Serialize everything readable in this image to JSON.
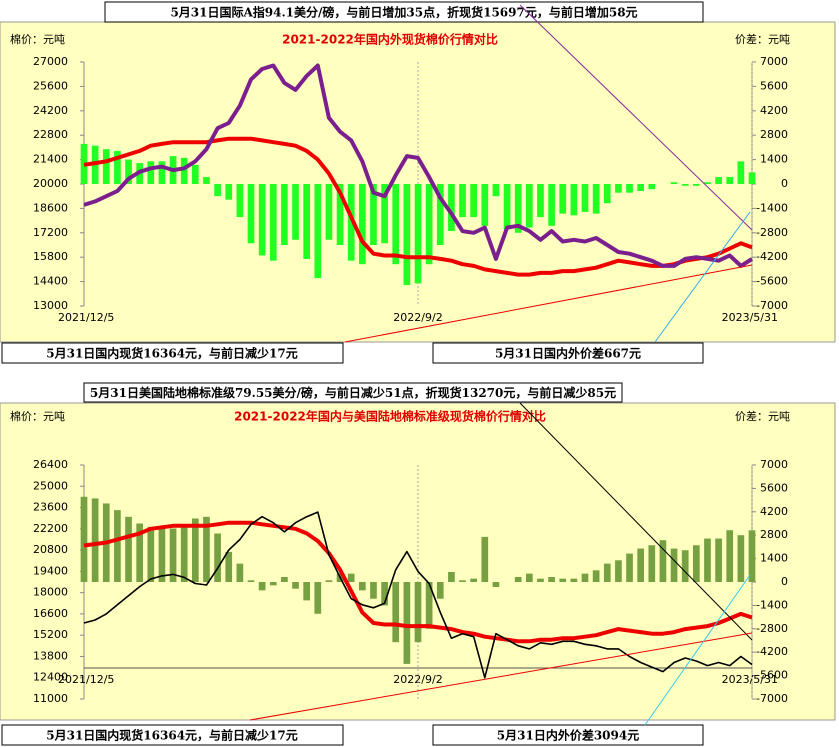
{
  "chart_data": [
    {
      "type": "combo",
      "headline": "5月31日国际A指94.1美分/磅，与前日增加35点，折现货15697元，与前日增加58元",
      "title": "2021-2022年国内外现货棉价行情对比",
      "left_label": "棉价：元吨",
      "right_label": "价差：元吨",
      "footer_left": "5月31日国内现货16364元，与前日减少17元",
      "footer_right": "5月31日国内外价差667元",
      "categories": [
        "2021/12/5",
        null,
        null,
        null,
        null,
        null,
        null,
        null,
        null,
        null,
        null,
        null,
        null,
        null,
        null,
        null,
        null,
        null,
        null,
        null,
        null,
        null,
        null,
        null,
        null,
        null,
        null,
        null,
        null,
        null,
        "2022/9/2",
        null,
        null,
        null,
        null,
        null,
        null,
        null,
        null,
        null,
        null,
        null,
        null,
        null,
        null,
        null,
        null,
        null,
        null,
        null,
        null,
        null,
        null,
        null,
        null,
        null,
        null,
        null,
        null,
        null,
        "2023/5/31"
      ],
      "ylim": [
        13000,
        27000
      ],
      "yticks": [
        13000,
        14400,
        15800,
        17200,
        18600,
        20000,
        21400,
        22800,
        24200,
        25600,
        27000
      ],
      "y2lim": [
        -7000,
        7000
      ],
      "y2ticks": [
        -7000,
        -5600,
        -4200,
        -2800,
        -1400,
        0,
        1400,
        2800,
        4200,
        5600,
        7000
      ],
      "series": [
        {
          "type": "bar",
          "axis": "y2",
          "color": "#22ff22",
          "values": [
            2300,
            2200,
            2000,
            1900,
            1400,
            1200,
            1300,
            1300,
            1600,
            1500,
            1100,
            400,
            -700,
            -900,
            -1900,
            -3400,
            -4100,
            -4400,
            -3500,
            -3200,
            -4300,
            -5400,
            -3200,
            -3500,
            -4400,
            -4600,
            -3500,
            -3400,
            -4600,
            -5800,
            -5700,
            -4600,
            -3500,
            -2700,
            -1900,
            -1900,
            -2400,
            -700,
            -2600,
            -2800,
            -2500,
            -1900,
            -2400,
            -1700,
            -1800,
            -1600,
            -1700,
            -1100,
            -500,
            -500,
            -400,
            -300,
            0,
            100,
            -100,
            -100,
            100,
            400,
            400,
            1300,
            667
          ]
        },
        {
          "type": "line",
          "color": "#ee0000",
          "width": 4,
          "values": [
            21100,
            21200,
            21300,
            21500,
            21700,
            21900,
            22200,
            22300,
            22400,
            22400,
            22400,
            22400,
            22500,
            22600,
            22600,
            22600,
            22500,
            22400,
            22300,
            22200,
            21900,
            21400,
            20600,
            19500,
            18100,
            16700,
            16000,
            15900,
            15900,
            15800,
            15800,
            15800,
            15700,
            15600,
            15400,
            15300,
            15100,
            15000,
            14900,
            14800,
            14800,
            14900,
            14900,
            15000,
            15000,
            15100,
            15200,
            15400,
            15600,
            15500,
            15400,
            15300,
            15300,
            15400,
            15600,
            15700,
            15800,
            16000,
            16300,
            16600,
            16364
          ]
        },
        {
          "type": "line",
          "color": "#7b1f8f",
          "width": 4,
          "values": [
            18800,
            19000,
            19300,
            19600,
            20300,
            20700,
            20900,
            21000,
            20800,
            20900,
            21300,
            22000,
            23200,
            23500,
            24500,
            26000,
            26600,
            26800,
            25800,
            25400,
            26200,
            26800,
            23800,
            23000,
            22500,
            21300,
            19500,
            19300,
            20500,
            21600,
            21500,
            20400,
            19200,
            18300,
            17300,
            17200,
            17500,
            15700,
            17500,
            17600,
            17300,
            16800,
            17300,
            16700,
            16800,
            16700,
            16900,
            16500,
            16100,
            16000,
            15800,
            15600,
            15300,
            15300,
            15700,
            15800,
            15700,
            15600,
            15900,
            15300,
            15697
          ]
        }
      ]
    },
    {
      "type": "combo",
      "headline": "5月31日美国陆地棉标准级79.55美分/磅，与前日减少51点，折现货13270元，与前日减少85元",
      "title": "2021-2022年国内与美国陆地棉标准级现货棉价行情对比",
      "left_label": "棉价：元吨",
      "right_label": "价差：元吨",
      "footer_left": "5月31日国内现货16364元，与前日减少17元",
      "footer_right": "5月31日内外价差3094元",
      "categories": [
        "2021/12/5",
        null,
        null,
        null,
        null,
        null,
        null,
        null,
        null,
        null,
        null,
        null,
        null,
        null,
        null,
        null,
        null,
        null,
        null,
        null,
        null,
        null,
        null,
        null,
        null,
        null,
        null,
        null,
        null,
        null,
        "2022/9/2",
        null,
        null,
        null,
        null,
        null,
        null,
        null,
        null,
        null,
        null,
        null,
        null,
        null,
        null,
        null,
        null,
        null,
        null,
        null,
        null,
        null,
        null,
        null,
        null,
        null,
        null,
        null,
        null,
        null,
        "2023/5/31"
      ],
      "ylim": [
        11000,
        26400
      ],
      "yticks": [
        11000,
        12400,
        13800,
        15200,
        16600,
        18000,
        19400,
        20800,
        22200,
        23600,
        25000,
        26400
      ],
      "y2lim": [
        -7000,
        7000
      ],
      "y2ticks": [
        -7000,
        -5600,
        -4200,
        -2800,
        -1400,
        0,
        1400,
        2800,
        4200,
        5600,
        7000
      ],
      "series": [
        {
          "type": "bar",
          "axis": "y2",
          "color": "#77a043",
          "values": [
            5100,
            5000,
            4700,
            4300,
            3900,
            3500,
            3300,
            3200,
            3200,
            3400,
            3800,
            3900,
            2900,
            1800,
            1100,
            100,
            -500,
            -200,
            300,
            -400,
            -1100,
            -1900,
            100,
            500,
            500,
            -500,
            -1000,
            -1400,
            -3600,
            -4900,
            -3600,
            -2800,
            -1000,
            600,
            100,
            200,
            2700,
            -300,
            0,
            300,
            500,
            200,
            300,
            200,
            200,
            500,
            700,
            1100,
            1300,
            1700,
            2000,
            2200,
            2500,
            2000,
            1900,
            2200,
            2600,
            2600,
            3100,
            2800,
            3094
          ]
        },
        {
          "type": "line",
          "color": "#ee0000",
          "width": 4,
          "values": [
            21100,
            21200,
            21300,
            21500,
            21700,
            21900,
            22200,
            22300,
            22400,
            22400,
            22400,
            22400,
            22500,
            22600,
            22600,
            22600,
            22500,
            22400,
            22300,
            22200,
            21900,
            21400,
            20600,
            19500,
            18100,
            16700,
            16000,
            15900,
            15900,
            15800,
            15800,
            15800,
            15700,
            15600,
            15400,
            15300,
            15100,
            15000,
            14900,
            14800,
            14800,
            14900,
            14900,
            15000,
            15000,
            15100,
            15200,
            15400,
            15600,
            15500,
            15400,
            15300,
            15300,
            15400,
            15600,
            15700,
            15800,
            16000,
            16300,
            16600,
            16364
          ]
        },
        {
          "type": "line",
          "color": "#000000",
          "width": 1.6,
          "values": [
            16000,
            16200,
            16600,
            17200,
            17800,
            18400,
            18900,
            19100,
            19200,
            19000,
            18600,
            18500,
            19600,
            20800,
            21500,
            22500,
            23000,
            22600,
            22000,
            22600,
            23000,
            23300,
            20500,
            19000,
            17600,
            17200,
            17000,
            17300,
            19500,
            20700,
            19400,
            18600,
            16700,
            15000,
            15300,
            15100,
            12400,
            15300,
            14900,
            14500,
            14300,
            14700,
            14600,
            14800,
            14800,
            14600,
            14500,
            14300,
            14300,
            13800,
            13400,
            13100,
            12800,
            13400,
            13700,
            13500,
            13200,
            13400,
            13200,
            13800,
            13270
          ]
        }
      ]
    }
  ]
}
